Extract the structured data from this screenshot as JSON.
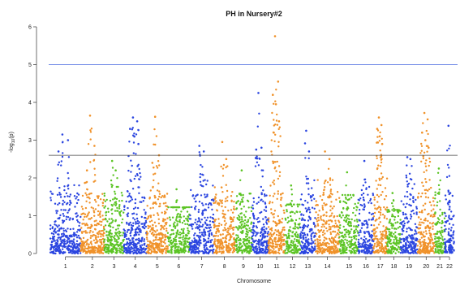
{
  "chart_data": {
    "type": "scatter",
    "subtype": "manhattan",
    "title": "PH in Nursery#2",
    "xlabel": "Chromosome",
    "ylabel_main": "-log",
    "ylabel_sub": "10",
    "ylabel_tail": "(p)",
    "ylim": [
      0,
      6
    ],
    "yticks": [
      0,
      1,
      2,
      3,
      4,
      5,
      6
    ],
    "grid": false,
    "thresholds": [
      {
        "y": 5.0,
        "color": "#4f6fe0"
      },
      {
        "y": 2.6,
        "color": "#444444"
      }
    ],
    "chromosomes": [
      {
        "label": "1",
        "size": 1.0,
        "color": "#2c46e0",
        "max": 3.15,
        "peaks": [
          3.15,
          3.0,
          2.7
        ]
      },
      {
        "label": "2",
        "size": 0.78,
        "color": "#f0922a",
        "max": 3.65,
        "peaks": [
          3.65,
          2.85,
          2.2
        ]
      },
      {
        "label": "3",
        "size": 0.65,
        "color": "#5cc425",
        "max": 2.45,
        "peaks": [
          2.45,
          2.2
        ]
      },
      {
        "label": "4",
        "size": 0.75,
        "color": "#2c46e0",
        "max": 3.6,
        "peaks": [
          3.6,
          3.5,
          3.3,
          3.1,
          2.9
        ]
      },
      {
        "label": "5",
        "size": 0.7,
        "color": "#f0922a",
        "max": 3.62,
        "peaks": [
          3.62,
          2.6,
          2.4
        ]
      },
      {
        "label": "6",
        "size": 0.72,
        "color": "#5cc425",
        "max": 1.7,
        "peaks": [
          1.7
        ]
      },
      {
        "label": "7",
        "size": 0.8,
        "color": "#2c46e0",
        "max": 2.85,
        "peaks": [
          2.85,
          2.7
        ]
      },
      {
        "label": "8",
        "size": 0.7,
        "color": "#f0922a",
        "max": 2.95,
        "peaks": [
          2.95,
          2.5
        ]
      },
      {
        "label": "9",
        "size": 0.55,
        "color": "#5cc425",
        "max": 2.2,
        "peaks": [
          2.2
        ]
      },
      {
        "label": "10",
        "size": 0.55,
        "color": "#2c46e0",
        "max": 4.25,
        "peaks": [
          4.25,
          2.8,
          2.75
        ]
      },
      {
        "label": "11",
        "size": 0.55,
        "color": "#f0922a",
        "max": 5.75,
        "peaks": [
          5.75,
          4.55,
          4.2,
          3.95,
          3.5,
          3.2
        ]
      },
      {
        "label": "12",
        "size": 0.5,
        "color": "#5cc425",
        "max": 1.8,
        "peaks": [
          1.8
        ]
      },
      {
        "label": "13",
        "size": 0.5,
        "color": "#2c46e0",
        "max": 3.25,
        "peaks": [
          3.25,
          2.7
        ]
      },
      {
        "label": "14",
        "size": 0.8,
        "color": "#f0922a",
        "max": 2.7,
        "peaks": [
          2.7,
          2.5
        ]
      },
      {
        "label": "15",
        "size": 0.62,
        "color": "#5cc425",
        "max": 2.15,
        "peaks": [
          2.15
        ]
      },
      {
        "label": "16",
        "size": 0.5,
        "color": "#2c46e0",
        "max": 2.45,
        "peaks": [
          2.45
        ]
      },
      {
        "label": "17",
        "size": 0.45,
        "color": "#f0922a",
        "max": 3.6,
        "peaks": [
          3.6,
          3.4,
          3.3,
          3.1,
          2.9
        ]
      },
      {
        "label": "18",
        "size": 0.45,
        "color": "#5cc425",
        "max": 1.6,
        "peaks": [
          1.6
        ]
      },
      {
        "label": "19",
        "size": 0.55,
        "color": "#2c46e0",
        "max": 2.55,
        "peaks": [
          2.55,
          2.5
        ]
      },
      {
        "label": "20",
        "size": 0.58,
        "color": "#f0922a",
        "max": 3.72,
        "peaks": [
          3.72,
          3.55,
          3.2,
          3.0,
          2.8
        ]
      },
      {
        "label": "21",
        "size": 0.32,
        "color": "#5cc425",
        "max": 2.25,
        "peaks": [
          2.25
        ]
      },
      {
        "label": "22",
        "size": 0.32,
        "color": "#2c46e0",
        "max": 3.38,
        "peaks": [
          3.38,
          1.6
        ]
      }
    ]
  }
}
